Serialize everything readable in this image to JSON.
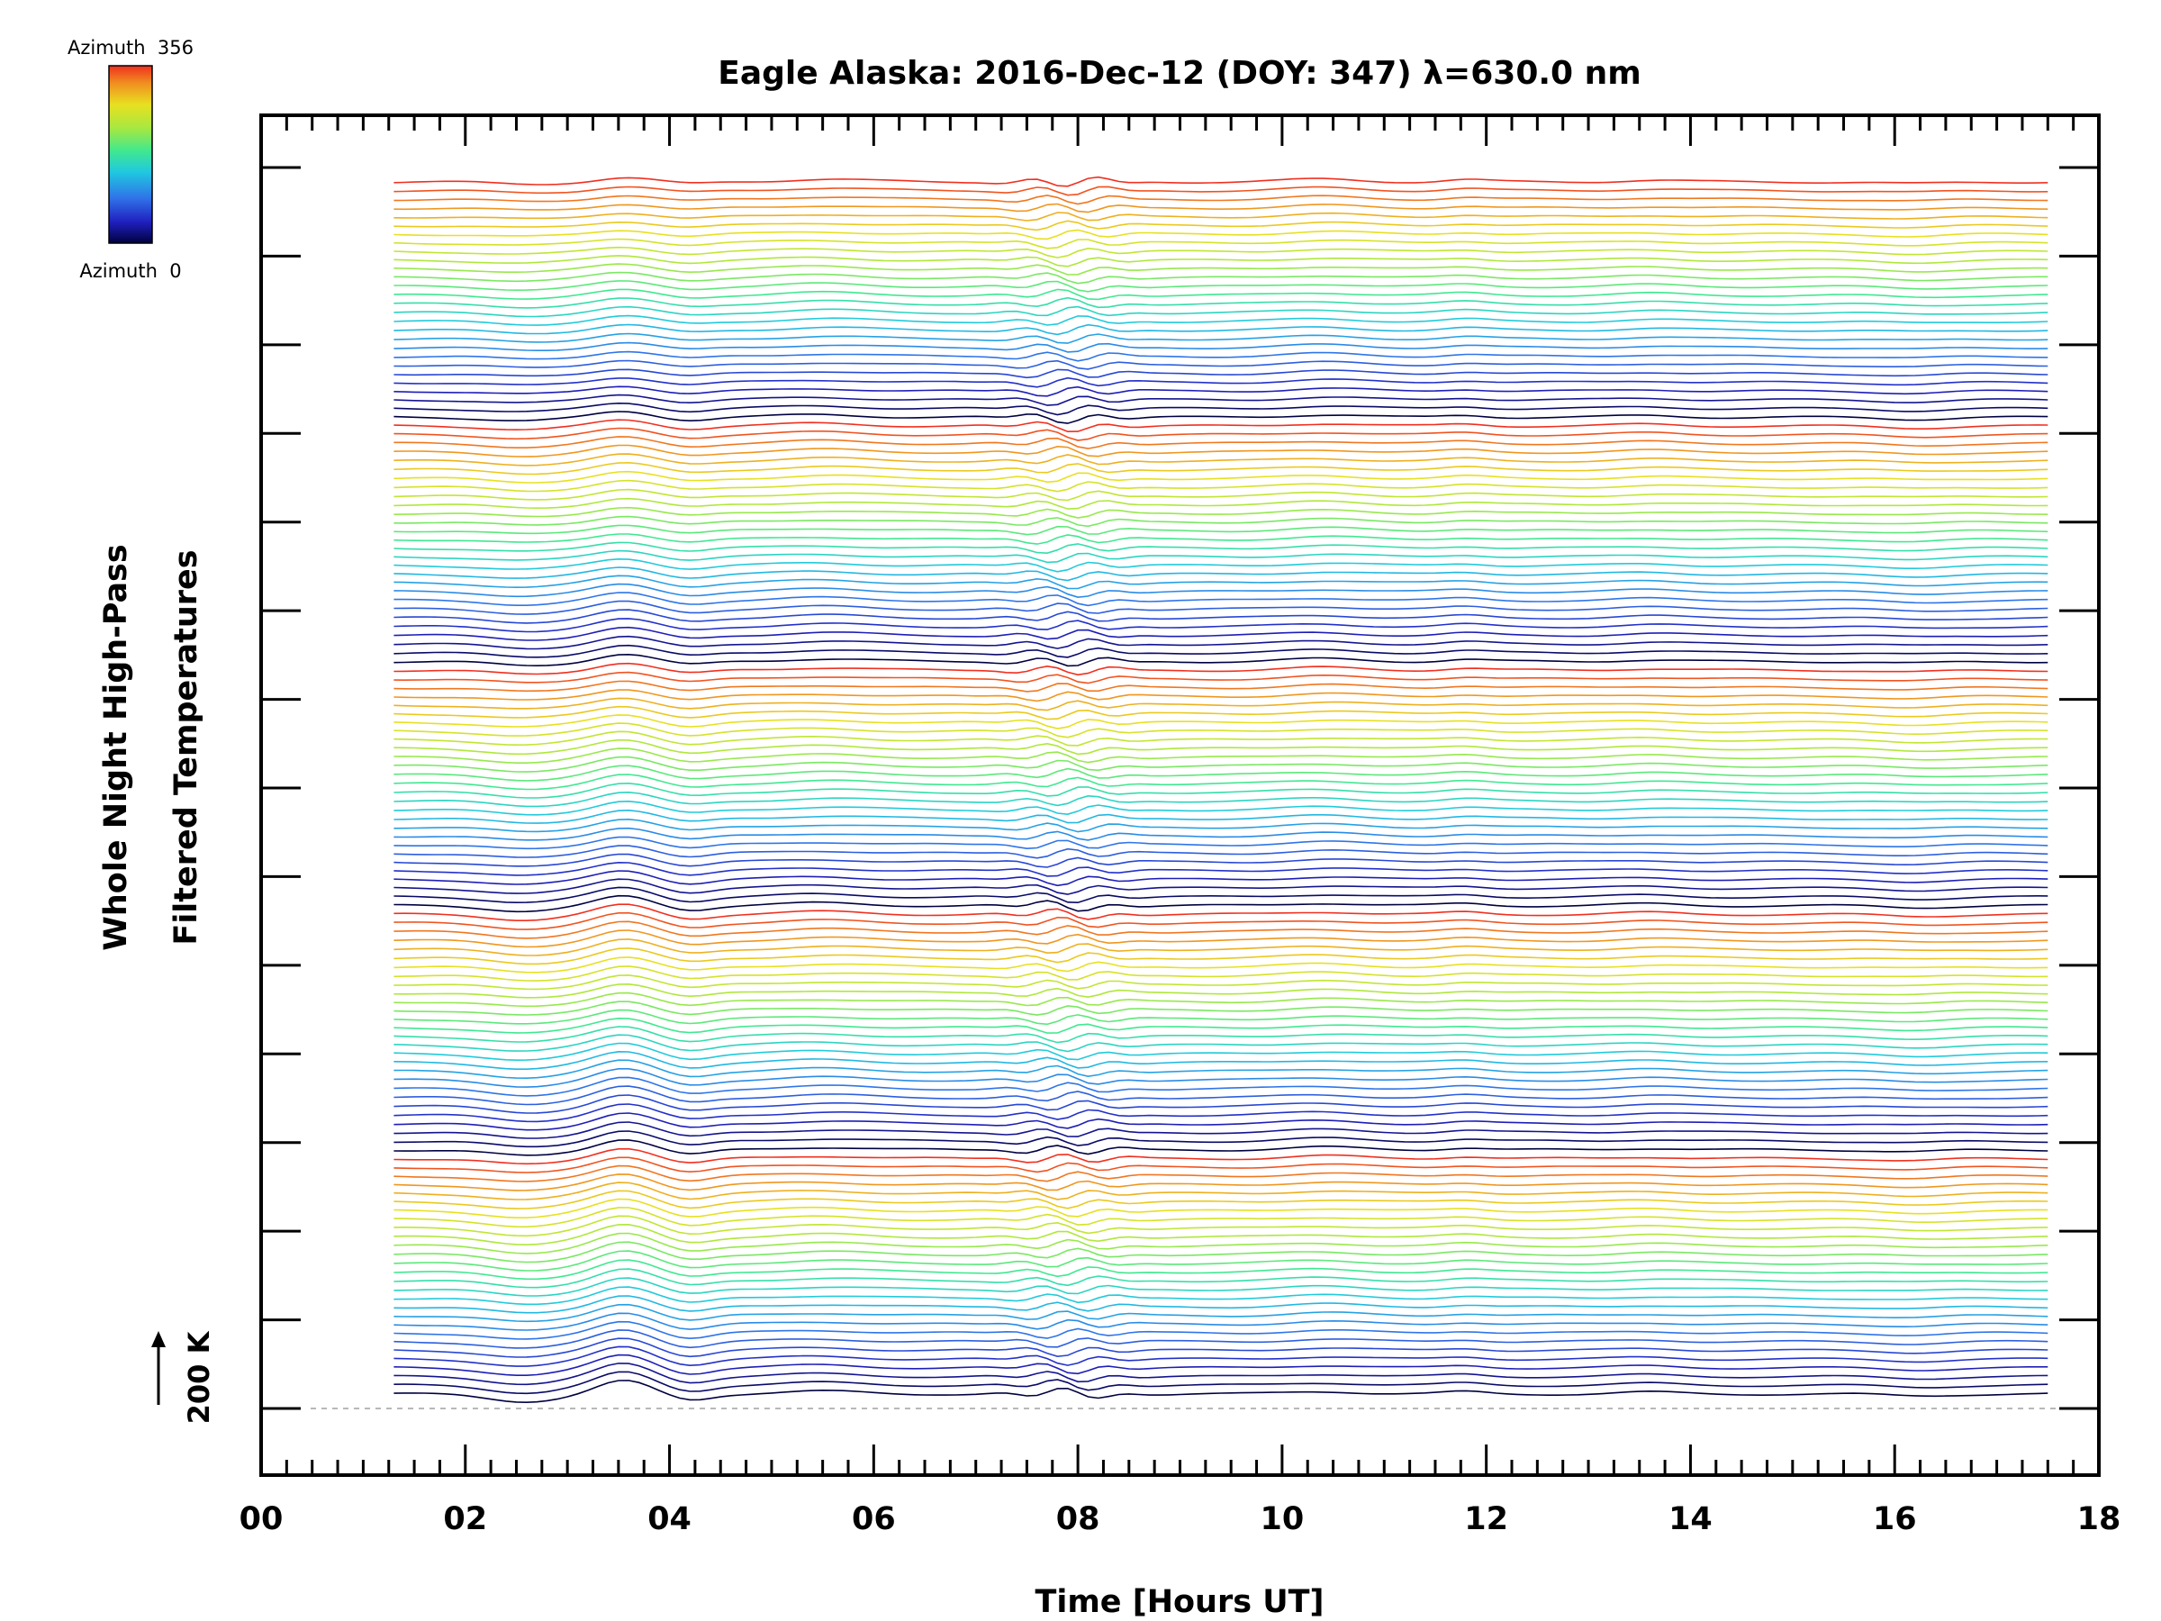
{
  "chart_data": {
    "type": "line",
    "title": "Eagle Alaska: 2016-Dec-12 (DOY: 347) λ=630.0 nm",
    "xlabel": "Time [Hours UT]",
    "ylabel": [
      "Whole Night High-Pass",
      "Filtered Temperatures"
    ],
    "xlim": [
      0,
      18
    ],
    "x_tick_labels": [
      "00",
      "02",
      "04",
      "06",
      "08",
      "10",
      "12",
      "14",
      "16",
      "18"
    ],
    "x_start": 1.3,
    "x_end": 17.55,
    "trace_count": 140,
    "azimuth_min": 0,
    "azimuth_max": 356,
    "azimuths_per_cycle": 28,
    "scale_bar": "200 K",
    "colorbar": {
      "label_top": "Azimuth  356",
      "label_bottom": "Azimuth  0",
      "colors": [
        "#000040",
        "#2020c0",
        "#3070e8",
        "#20c8e0",
        "#40e890",
        "#a8e840",
        "#e8e020",
        "#f09020",
        "#f03020"
      ]
    },
    "y_tick_count": 15,
    "grid": false
  }
}
